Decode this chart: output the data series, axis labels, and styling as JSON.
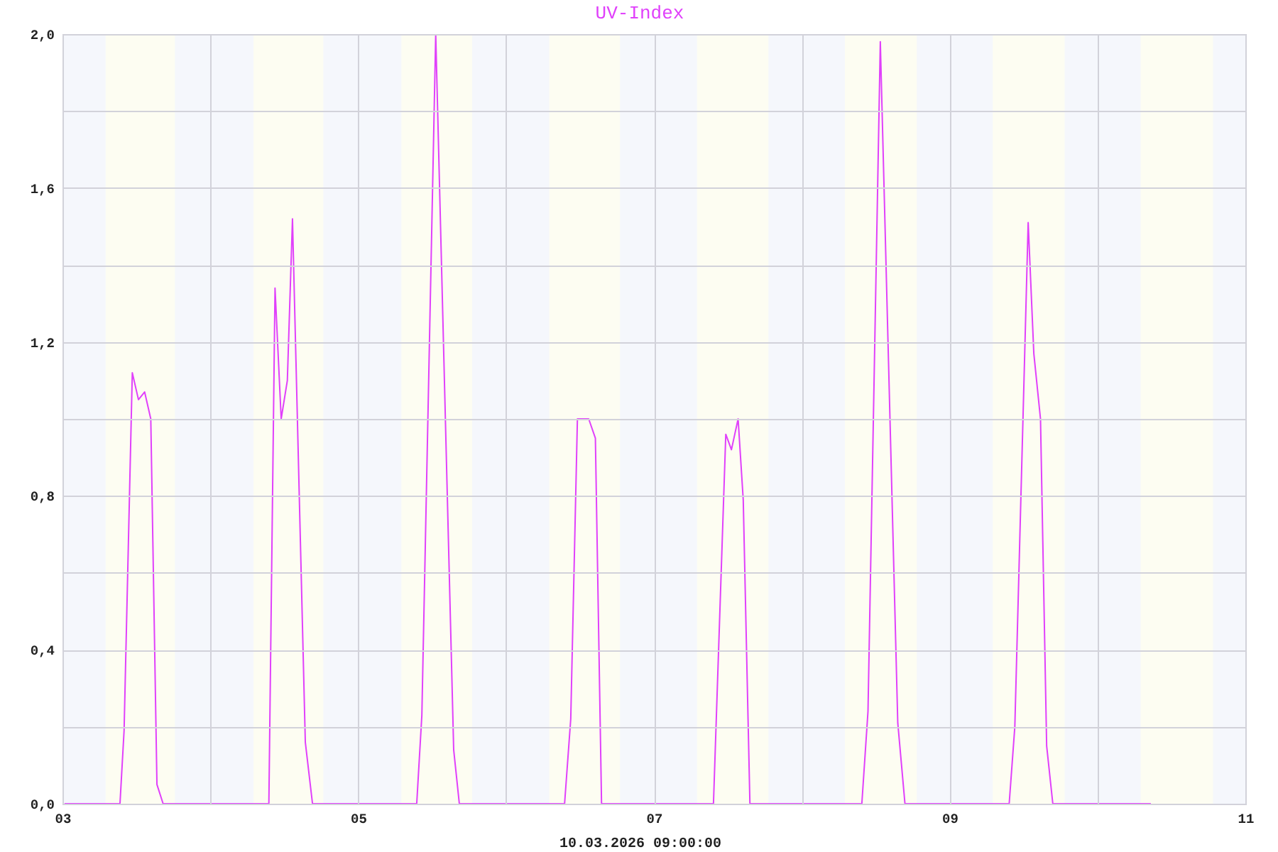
{
  "chart_data": {
    "type": "line",
    "title": "UV-Index",
    "xlabel": "10.03.2026 09:00:00",
    "x": [
      "2026-03-03T00:20",
      "2026-03-03T09:20",
      "2026-03-03T10:00",
      "2026-03-03T11:20",
      "2026-03-03T12:20",
      "2026-03-03T13:20",
      "2026-03-03T14:20",
      "2026-03-03T15:20",
      "2026-03-03T16:20",
      "2026-03-04T09:30",
      "2026-03-04T10:30",
      "2026-03-04T11:30",
      "2026-03-04T12:30",
      "2026-03-04T13:20",
      "2026-03-04T15:25",
      "2026-03-04T16:35",
      "2026-03-05T09:30",
      "2026-03-05T10:20",
      "2026-03-05T12:35",
      "2026-03-05T15:30",
      "2026-03-05T16:25",
      "2026-03-06T09:30",
      "2026-03-06T10:30",
      "2026-03-06T11:35",
      "2026-03-06T13:25",
      "2026-03-06T14:30",
      "2026-03-06T15:30",
      "2026-03-07T09:40",
      "2026-03-07T11:40",
      "2026-03-07T12:35",
      "2026-03-07T13:40",
      "2026-03-07T14:30",
      "2026-03-07T15:35",
      "2026-03-08T09:45",
      "2026-03-08T10:45",
      "2026-03-08T12:45",
      "2026-03-08T15:35",
      "2026-03-08T16:45",
      "2026-03-09T09:40",
      "2026-03-09T10:35",
      "2026-03-09T12:45",
      "2026-03-09T13:40",
      "2026-03-09T14:45",
      "2026-03-09T15:45",
      "2026-03-09T16:45",
      "2026-03-10T08:40"
    ],
    "series": [
      {
        "color": "#e040fb",
        "values": [
          0,
          0,
          0.19,
          1.12,
          1.05,
          1.07,
          1.0,
          0.05,
          0,
          0,
          1.34,
          1.0,
          1.1,
          1.52,
          0.16,
          0,
          0,
          0.23,
          2.0,
          0.14,
          0,
          0,
          0.22,
          1.0,
          1.0,
          0.95,
          0,
          0,
          0.96,
          0.92,
          1.0,
          0.79,
          0,
          0,
          0.24,
          1.98,
          0.21,
          0,
          0,
          0.2,
          1.51,
          1.17,
          1.0,
          0.15,
          0,
          0
        ]
      }
    ],
    "xlim": [
      "2026-03-03",
      "2026-03-11"
    ],
    "xticks": [
      {
        "value": "2026-03-03",
        "label": "03"
      },
      {
        "value": "2026-03-04",
        "label": null
      },
      {
        "value": "2026-03-05",
        "label": "05"
      },
      {
        "value": "2026-03-06",
        "label": null
      },
      {
        "value": "2026-03-07",
        "label": "07"
      },
      {
        "value": "2026-03-08",
        "label": null
      },
      {
        "value": "2026-03-09",
        "label": "09"
      },
      {
        "value": "2026-03-10",
        "label": null
      },
      {
        "value": "2026-03-11",
        "label": "11"
      }
    ],
    "ylim": [
      0,
      2.0
    ],
    "yticks": [
      {
        "value": 0,
        "label": "0,0"
      },
      {
        "value": 0.2,
        "label": null
      },
      {
        "value": 0.4,
        "label": "0,4"
      },
      {
        "value": 0.6,
        "label": null
      },
      {
        "value": 0.8,
        "label": "0,8"
      },
      {
        "value": 1.0,
        "label": null
      },
      {
        "value": 1.2,
        "label": "1,2"
      },
      {
        "value": 1.4,
        "label": null
      },
      {
        "value": 1.6,
        "label": "1,6"
      },
      {
        "value": 1.8,
        "label": null
      },
      {
        "value": 2.0,
        "label": "2,0"
      }
    ],
    "grid": true,
    "bands": [
      {
        "axis": "x",
        "from": "2026-03-03T07:00",
        "to": "2026-03-03T18:15",
        "color": "#fdfdf2"
      },
      {
        "axis": "x",
        "from": "2026-03-04T07:00",
        "to": "2026-03-04T18:20",
        "color": "#fdfdf2"
      },
      {
        "axis": "x",
        "from": "2026-03-05T07:00",
        "to": "2026-03-05T18:30",
        "color": "#fdfdf2"
      },
      {
        "axis": "x",
        "from": "2026-03-06T07:00",
        "to": "2026-03-06T18:30",
        "color": "#fdfdf2"
      },
      {
        "axis": "x",
        "from": "2026-03-07T07:00",
        "to": "2026-03-07T18:35",
        "color": "#fdfdf2"
      },
      {
        "axis": "x",
        "from": "2026-03-08T07:00",
        "to": "2026-03-08T18:40",
        "color": "#fdfdf2"
      },
      {
        "axis": "x",
        "from": "2026-03-09T07:00",
        "to": "2026-03-09T18:40",
        "color": "#fdfdf2"
      },
      {
        "axis": "x",
        "from": "2026-03-10T07:00",
        "to": "2026-03-10T18:45",
        "color": "#fdfdf2"
      }
    ]
  }
}
